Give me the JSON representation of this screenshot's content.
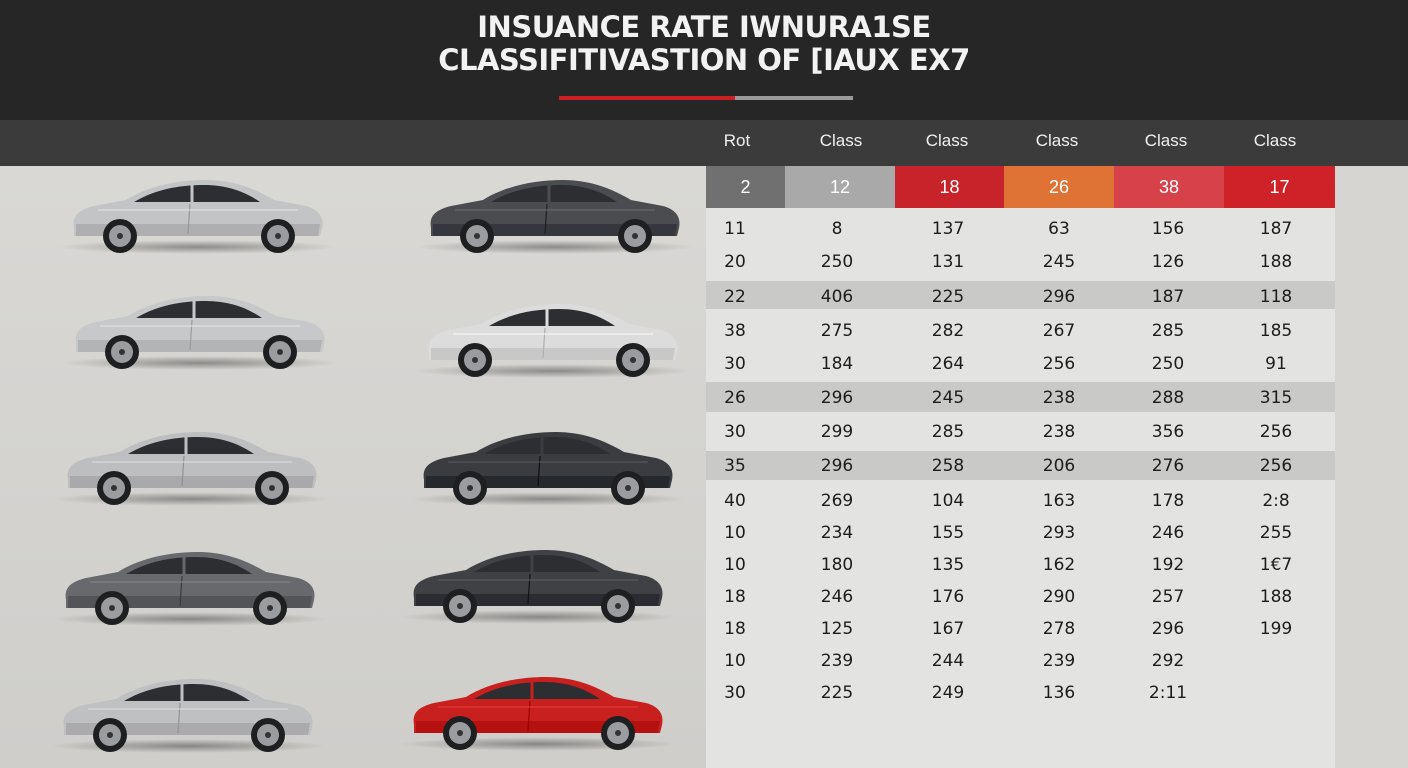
{
  "header": {
    "title_line1": "INSUANCE RATE IWNURA1SE",
    "title_line2": "CLASSIFITIVASTION OF [IAUX EX7"
  },
  "table": {
    "columns": [
      "Rot",
      "Class",
      "Class",
      "Class",
      "Class",
      "Class"
    ],
    "class_row": [
      {
        "value": "2",
        "color": "#707070"
      },
      {
        "value": "12",
        "color": "#a9a9a9"
      },
      {
        "value": "18",
        "color": "#c8232a"
      },
      {
        "value": "26",
        "color": "#df7336"
      },
      {
        "value": "38",
        "color": "#d7424a"
      },
      {
        "value": "17",
        "color": "#cf2128"
      }
    ],
    "rows": [
      [
        "11",
        "8",
        "137",
        "63",
        "156",
        "187"
      ],
      [
        "20",
        "250",
        "131",
        "245",
        "126",
        "188"
      ],
      [
        "22",
        "406",
        "225",
        "296",
        "187",
        "118"
      ],
      [
        "38",
        "275",
        "282",
        "267",
        "285",
        "185"
      ],
      [
        "30",
        "184",
        "264",
        "256",
        "250",
        "91"
      ],
      [
        "26",
        "296",
        "245",
        "238",
        "288",
        "315"
      ],
      [
        "30",
        "299",
        "285",
        "238",
        "356",
        "256"
      ],
      [
        "35",
        "296",
        "258",
        "206",
        "276",
        "256"
      ],
      [
        "40",
        "269",
        "104",
        "163",
        "178",
        "2:8"
      ],
      [
        "10",
        "234",
        "155",
        "293",
        "246",
        "255"
      ],
      [
        "10",
        "180",
        "135",
        "162",
        "192",
        "1€7"
      ],
      [
        "18",
        "246",
        "176",
        "290",
        "257",
        "188"
      ],
      [
        "18",
        "125",
        "167",
        "278",
        "296",
        "199"
      ],
      [
        "10",
        "239",
        "244",
        "239",
        "292",
        ""
      ],
      [
        "30",
        "225",
        "249",
        "136",
        "2:11",
        ""
      ]
    ]
  },
  "cars": [
    {
      "name": "silver-sedan",
      "body": "#c3c4c6"
    },
    {
      "name": "dark-grey-sedan",
      "body": "#4a4c50"
    },
    {
      "name": "silver-sedan",
      "body": "#c7c8ca"
    },
    {
      "name": "white-sedan",
      "body": "#dcdcdc"
    },
    {
      "name": "silver-sedan",
      "body": "#bdbec0"
    },
    {
      "name": "black-sedan",
      "body": "#3a3c40"
    },
    {
      "name": "grey-sedan",
      "body": "#67696c"
    },
    {
      "name": "black-sedan",
      "body": "#3f4145"
    },
    {
      "name": "silver-sedan",
      "body": "#bfc0c2"
    },
    {
      "name": "red-sedan",
      "body": "#c8201e"
    }
  ]
}
